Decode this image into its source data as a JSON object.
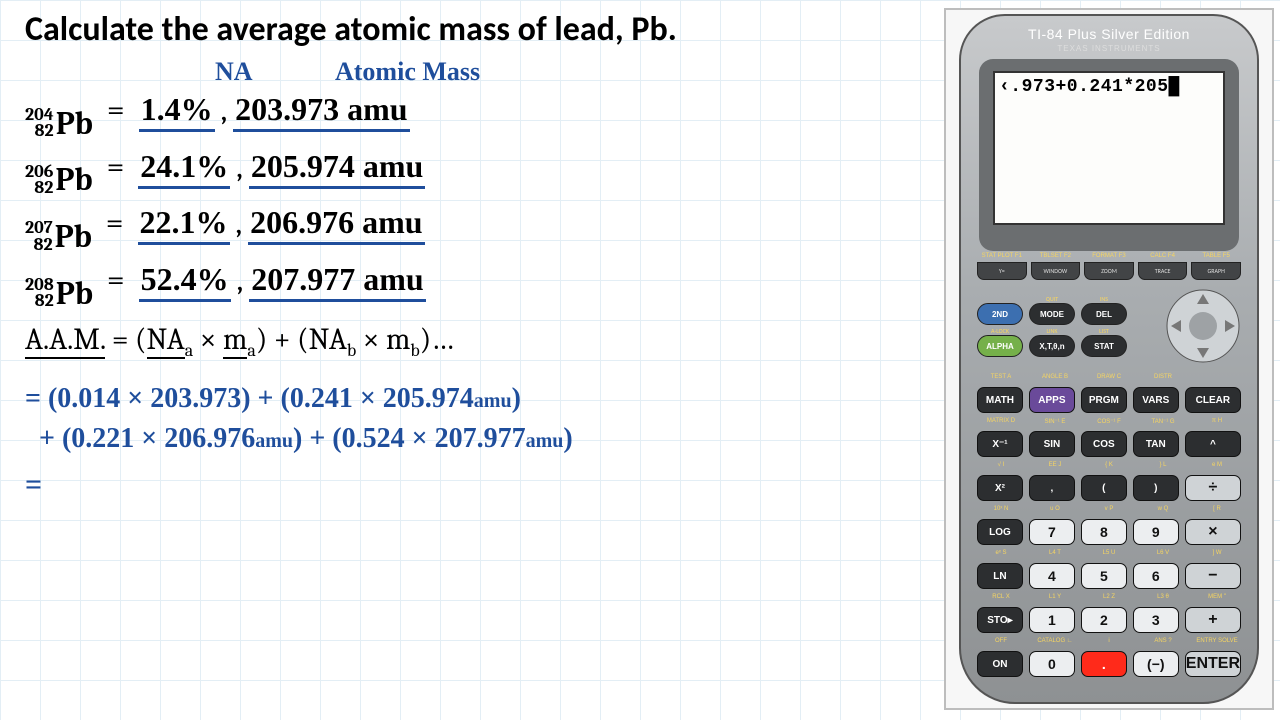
{
  "title": "Calculate the average atomic mass of lead, Pb.",
  "headers": {
    "na": "NA",
    "atomic_mass": "Atomic Mass"
  },
  "handwriting_color": "#1f4e9c",
  "isotopes": [
    {
      "mass_number": "204",
      "atomic_number": "82",
      "element": "Pb",
      "abundance": "1.4%",
      "mass": "203.973 amu"
    },
    {
      "mass_number": "206",
      "atomic_number": "82",
      "element": "Pb",
      "abundance": "24.1%",
      "mass": "205.974 amu"
    },
    {
      "mass_number": "207",
      "atomic_number": "82",
      "element": "Pb",
      "abundance": "22.1%",
      "mass": "206.976 amu"
    },
    {
      "mass_number": "208",
      "atomic_number": "82",
      "element": "Pb",
      "abundance": "52.4%",
      "mass": "207.977 amu"
    }
  ],
  "formula": {
    "lhs": "A.A.M.",
    "rhs": " = (NAₐ × mₐ) + (NA_b × m_b)…"
  },
  "work": {
    "line1": "= (0.014 × 203.973) + (0.241 × 205.974 amu)",
    "line2": "  + (0.221 × 206.976 amu) + (0.524 × 207.977 amu)",
    "line3": "="
  },
  "calculator": {
    "model": "TI-84 Plus Silver Edition",
    "brand": "TEXAS INSTRUMENTS",
    "screen_text": "‹.973+0.241*205█",
    "case_color": "#a9adb0",
    "screen_bg": "#fdfdfb",
    "fkey_labels": [
      "STAT PLOT F1",
      "TBLSET F2",
      "FORMAT F3",
      "CALC F4",
      "TABLE F5"
    ],
    "fkeys": [
      "Y=",
      "WINDOW",
      "ZOOM",
      "TRACE",
      "GRAPH"
    ],
    "top_buttons": {
      "r1": [
        "2ND",
        "MODE",
        "DEL"
      ],
      "r2": [
        "ALPHA",
        "X,T,θ,n",
        "STAT"
      ],
      "r1_labels": [
        "",
        "QUIT",
        "INS"
      ],
      "r2_labels": [
        "A-LOCK",
        "LINK",
        "LIST"
      ]
    },
    "rows_labels": [
      [
        "TEST A",
        "ANGLE B",
        "DRAW C",
        "DISTR",
        ""
      ],
      [
        "MATRIX D",
        "SIN⁻¹ E",
        "COS⁻¹ F",
        "TAN⁻¹ G",
        "π H"
      ],
      [
        "√ I",
        "EE J",
        "{ K",
        "} L",
        "e M"
      ],
      [
        "10ˣ N",
        "u O",
        "v P",
        "w Q",
        "[ R"
      ],
      [
        "eˣ S",
        "L4 T",
        "L5 U",
        "L6 V",
        "] W"
      ],
      [
        "RCL X",
        "L1 Y",
        "L2 Z",
        "L3 θ",
        "MEM \""
      ],
      [
        "OFF",
        "CATALOG ∟",
        "i",
        "ANS ?",
        "ENTRY SOLVE"
      ]
    ],
    "rows": [
      [
        "MATH",
        "APPS",
        "PRGM",
        "VARS",
        "CLEAR"
      ],
      [
        "X⁻¹",
        "SIN",
        "COS",
        "TAN",
        "^"
      ],
      [
        "X²",
        ",",
        "(",
        ")",
        "÷"
      ],
      [
        "LOG",
        "7",
        "8",
        "9",
        "×"
      ],
      [
        "LN",
        "4",
        "5",
        "6",
        "−"
      ],
      [
        "STO▸",
        "1",
        "2",
        "3",
        "+"
      ],
      [
        "ON",
        "0",
        ".",
        "(−)",
        "ENTER"
      ]
    ]
  }
}
